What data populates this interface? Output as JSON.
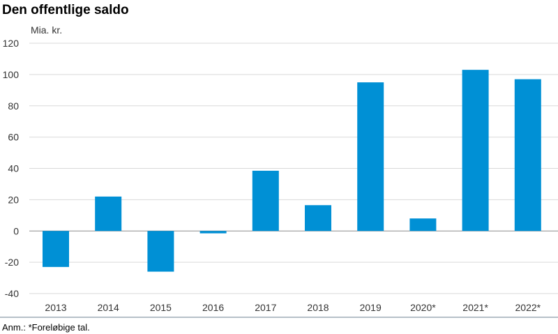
{
  "chart_data": {
    "type": "bar",
    "title": "Den offentlige saldo",
    "ylabel": "Mia. kr.",
    "xlabel": "",
    "categories": [
      "2013",
      "2014",
      "2015",
      "2016",
      "2017",
      "2018",
      "2019",
      "2020*",
      "2021*",
      "2022*"
    ],
    "values": [
      -23,
      22,
      -26,
      -1.5,
      38.5,
      16.5,
      95,
      8,
      103,
      97
    ],
    "ylim": [
      -40,
      120
    ],
    "yticks": [
      120,
      100,
      80,
      60,
      40,
      20,
      0,
      -20,
      -40
    ],
    "grid": true,
    "bar_color": "#0090d5",
    "note": "Anm.: *Foreløbige tal."
  }
}
